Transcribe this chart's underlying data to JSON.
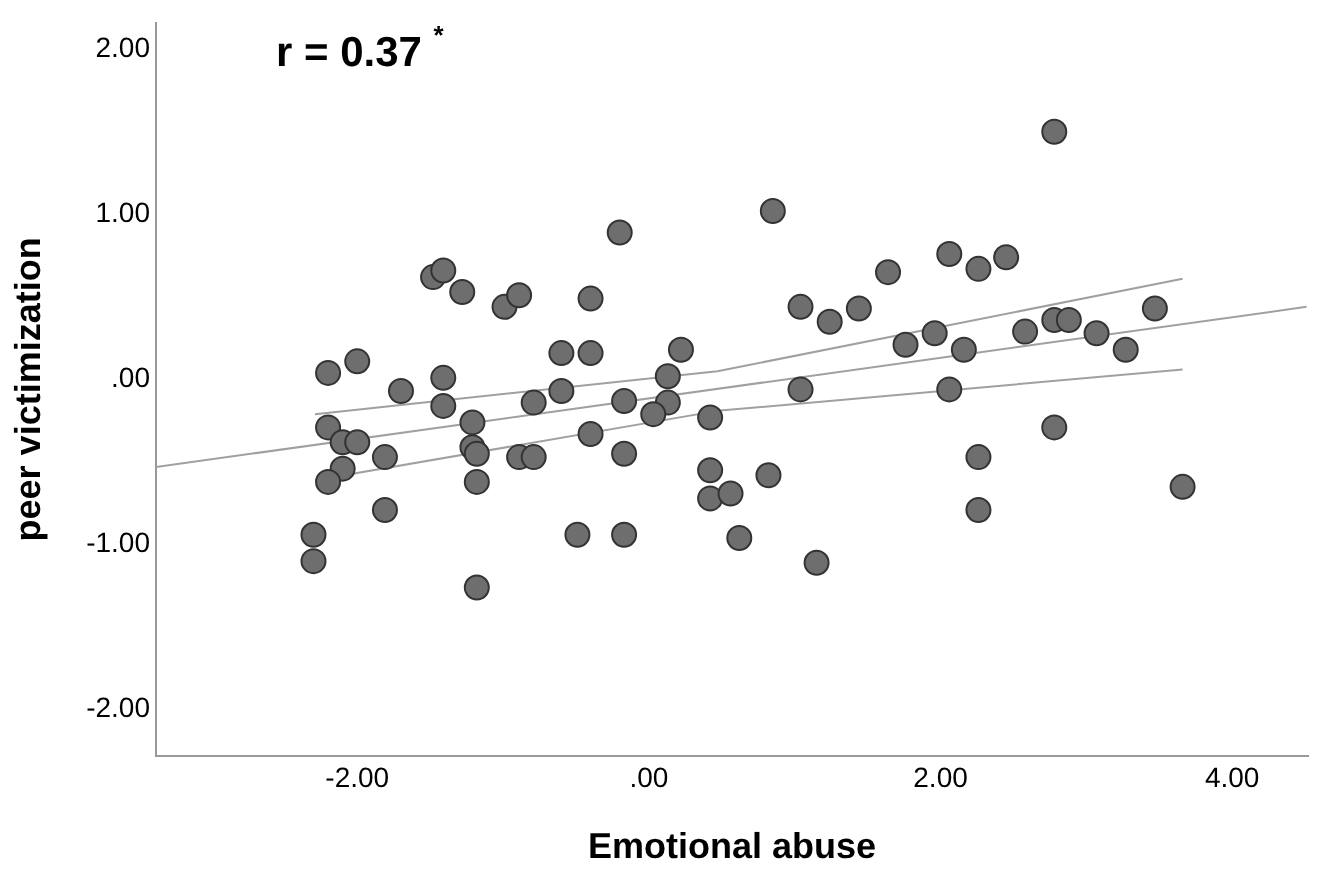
{
  "chart_data": {
    "type": "scatter",
    "xlabel": "Emotional abuse",
    "ylabel": "peer victimization",
    "annotations": [
      "r = 0.37 $^{*}$"
    ],
    "xlim": [
      -3.38,
      4.52
    ],
    "xticks": [
      {
        "value": -2,
        "label": "-2.00"
      },
      {
        "value": 0,
        "label": ".00"
      },
      {
        "value": 2,
        "label": "2.00"
      },
      {
        "value": 4,
        "label": "4.00"
      }
    ],
    "ylim": [
      -2.28,
      2.16
    ],
    "yticks": [
      {
        "value": -2,
        "label": "-2.00"
      },
      {
        "value": -1,
        "label": "-1.00"
      },
      {
        "value": 0,
        "label": ".00"
      },
      {
        "value": 1,
        "label": "1.00"
      },
      {
        "value": 2,
        "label": "2.00"
      }
    ],
    "grid": false,
    "legend": false,
    "marker": "circle",
    "series": [
      {
        "type": "scatter",
        "color": "#6e6e6e",
        "x": [
          -2.2,
          -2.0,
          -1.48,
          -1.41,
          -1.28,
          -0.99,
          -0.89,
          -0.4,
          -0.2,
          -1.7,
          -1.41,
          -1.41,
          -0.6,
          -0.4,
          -0.6,
          -0.79,
          0.22,
          0.13,
          0.13,
          0.03,
          -0.17,
          0.42,
          -2.2,
          -2.1,
          -2.0,
          -1.81,
          -2.1,
          -2.2,
          -1.21,
          -1.21,
          -1.18,
          -1.18,
          -0.89,
          -0.79,
          -0.4,
          -0.17,
          -1.81,
          -2.3,
          -2.3,
          -1.18,
          -0.49,
          -0.17,
          0.42,
          0.42,
          0.56,
          0.62,
          0.82,
          1.15,
          0.85,
          1.04,
          1.24,
          1.44,
          1.64,
          1.04,
          1.76,
          1.96,
          2.16,
          2.06,
          2.26,
          2.45,
          2.06,
          2.26,
          2.26,
          2.78,
          2.58,
          2.78,
          2.88,
          3.07,
          3.27,
          3.47,
          2.78,
          3.66
        ],
        "values": [
          0.04,
          0.11,
          0.62,
          0.66,
          0.53,
          0.44,
          0.51,
          0.49,
          0.89,
          -0.07,
          0.01,
          -0.16,
          0.16,
          0.16,
          -0.07,
          -0.14,
          0.18,
          0.02,
          -0.14,
          -0.21,
          -0.13,
          -0.23,
          -0.29,
          -0.38,
          -0.38,
          -0.47,
          -0.54,
          -0.62,
          -0.26,
          -0.41,
          -0.45,
          -0.62,
          -0.47,
          -0.47,
          -0.33,
          -0.45,
          -0.79,
          -0.94,
          -1.1,
          -1.26,
          -0.94,
          -0.94,
          -0.55,
          -0.72,
          -0.69,
          -0.96,
          -0.58,
          -1.11,
          1.02,
          0.44,
          0.35,
          0.43,
          0.65,
          -0.06,
          0.21,
          0.28,
          0.18,
          0.76,
          0.67,
          0.74,
          -0.06,
          -0.47,
          -0.79,
          1.5,
          0.29,
          0.36,
          0.36,
          0.28,
          0.18,
          0.43,
          -0.29,
          -0.65
        ]
      },
      {
        "type": "line",
        "color": "#a0a0a0",
        "marker": "none",
        "x": [
          -3.38,
          4.51
        ],
        "values": [
          -0.53,
          0.44
        ]
      },
      {
        "type": "line",
        "color": "#a0a0a0",
        "marker": "none",
        "x": [
          -2.29,
          0.47,
          3.66
        ],
        "values": [
          -0.21,
          0.05,
          0.61
        ]
      },
      {
        "type": "line",
        "color": "#a0a0a0",
        "marker": "none",
        "x": [
          -2.29,
          0.47,
          3.66
        ],
        "values": [
          -0.61,
          -0.19,
          0.06
        ]
      }
    ]
  }
}
